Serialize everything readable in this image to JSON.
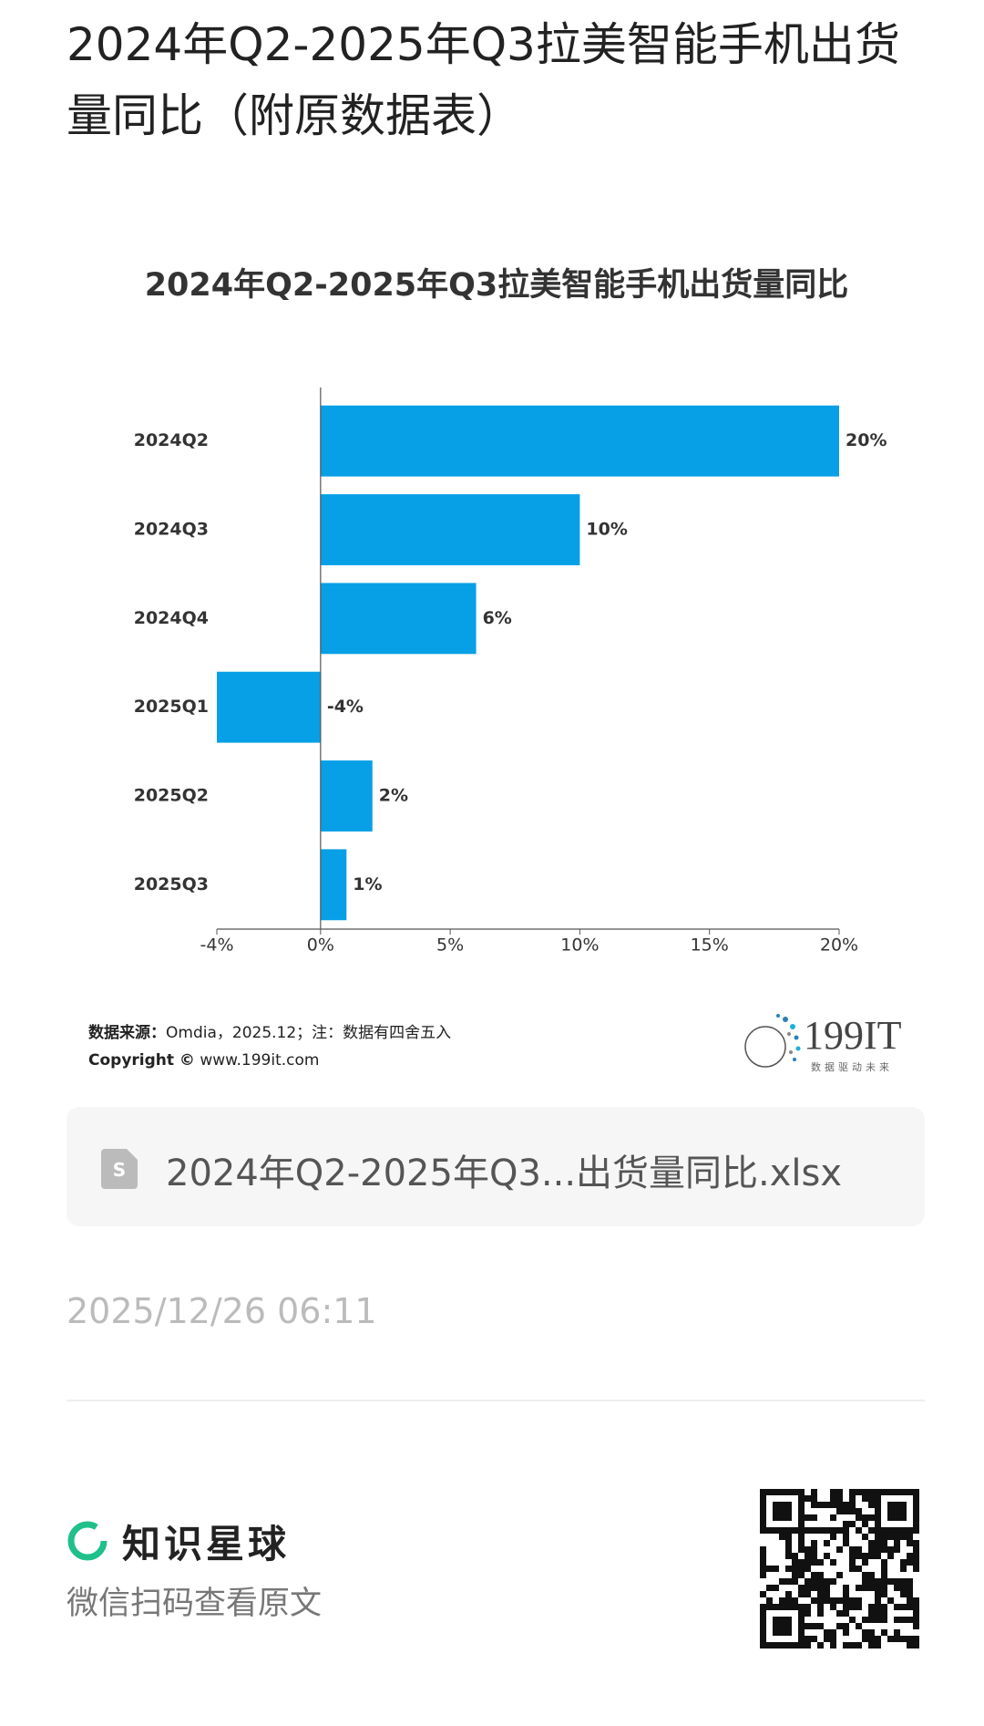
{
  "header": {
    "title": "2024年Q2-2025年Q3拉美智能手机出货量同比（附原数据表）"
  },
  "chart_data": {
    "type": "bar",
    "orientation": "horizontal",
    "title": "2024年Q2-2025年Q3拉美智能手机出货量同比",
    "categories": [
      "2024Q2",
      "2024Q3",
      "2024Q4",
      "2025Q1",
      "2025Q2",
      "2025Q3"
    ],
    "values": [
      20,
      10,
      6,
      -4,
      2,
      1
    ],
    "value_labels": [
      "20%",
      "10%",
      "6%",
      "-4%",
      "2%",
      "1%"
    ],
    "color": "#07a0e6",
    "xlim": [
      -4,
      20
    ],
    "xticks": [
      {
        "value": -4,
        "label": "-4%"
      },
      {
        "value": 0,
        "label": "0%"
      },
      {
        "value": 5,
        "label": "5%"
      },
      {
        "value": 10,
        "label": "10%"
      },
      {
        "value": 15,
        "label": "15%"
      },
      {
        "value": 20,
        "label": "20%"
      }
    ],
    "grid": false
  },
  "source": {
    "label": "数据来源：",
    "text": "Omdia，2025.12；注：数据有四舍五入"
  },
  "copyright": {
    "label": "Copyright ©",
    "text": "www.199it.com"
  },
  "logo": {
    "name": "199IT",
    "slogan": "数据驱动未来"
  },
  "attachment": {
    "file_name": "2024年Q2-2025年Q3...出货量同比.xlsx"
  },
  "timestamp": "2025/12/26 06:11",
  "footer": {
    "brand": "知识星球",
    "hint": "微信扫码查看原文"
  }
}
